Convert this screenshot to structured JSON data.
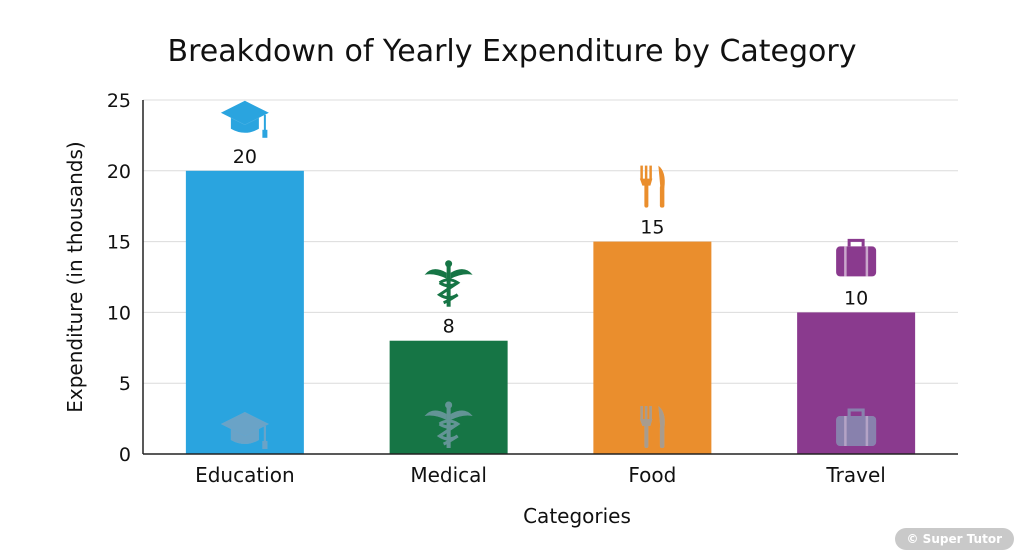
{
  "chart_data": {
    "type": "bar",
    "title": "Breakdown of Yearly Expenditure by Category",
    "xlabel": "Categories",
    "ylabel": "Expenditure (in thousands)",
    "categories": [
      "Education",
      "Medical",
      "Food",
      "Travel"
    ],
    "values": [
      20,
      8,
      15,
      10
    ],
    "colors": [
      "#2aa4df",
      "#167545",
      "#ea8e2d",
      "#8a3a8e"
    ],
    "icons": [
      "graduation-cap-icon",
      "caduceus-icon",
      "fork-knife-icon",
      "suitcase-icon"
    ],
    "ylim": [
      0,
      25
    ],
    "yticks": [
      0,
      5,
      10,
      15,
      20,
      25
    ],
    "grid": true,
    "legend": "none"
  },
  "watermark": "© Super Tutor"
}
